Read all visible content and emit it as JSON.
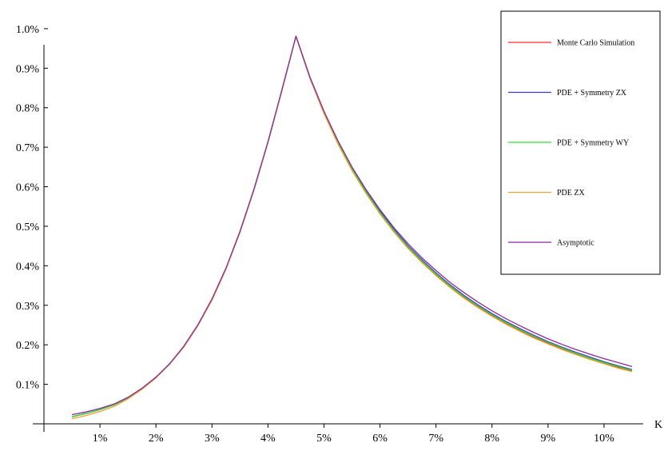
{
  "chart_data": {
    "type": "line",
    "xlabel": "K",
    "ylabel": "",
    "xlim": [
      0,
      0.107
    ],
    "ylim": [
      0,
      0.0102
    ],
    "x_ticks": [
      0.01,
      0.02,
      0.03,
      0.04,
      0.05,
      0.06,
      0.07,
      0.08,
      0.09,
      0.1
    ],
    "x_tick_labels": [
      "1%",
      "2%",
      "3%",
      "4%",
      "5%",
      "6%",
      "7%",
      "8%",
      "9%",
      "10%"
    ],
    "y_ticks": [
      0.001,
      0.002,
      0.003,
      0.004,
      0.005,
      0.006,
      0.007,
      0.008,
      0.009,
      0.01
    ],
    "y_tick_labels": [
      "0.1%",
      "0.2%",
      "0.3%",
      "0.4%",
      "0.5%",
      "0.6%",
      "0.7%",
      "0.8%",
      "0.9%",
      "1.0%"
    ],
    "grid": false,
    "legend_position": "top-right",
    "x": [
      0.005,
      0.0075,
      0.01,
      0.0125,
      0.015,
      0.0175,
      0.02,
      0.0225,
      0.025,
      0.0275,
      0.03,
      0.0325,
      0.035,
      0.0375,
      0.04,
      0.0425,
      0.045,
      0.0475,
      0.05,
      0.0525,
      0.055,
      0.0575,
      0.06,
      0.0625,
      0.065,
      0.0675,
      0.07,
      0.0725,
      0.075,
      0.0775,
      0.08,
      0.0825,
      0.085,
      0.0875,
      0.09,
      0.0925,
      0.095,
      0.0975,
      0.1,
      0.1025,
      0.105
    ],
    "series": [
      {
        "name": "Monte Carlo Simulation",
        "color": "#ff2a2a",
        "values": [
          0.00018,
          0.00026,
          0.00036,
          0.00048,
          0.00066,
          0.00089,
          0.00117,
          0.00152,
          0.00195,
          0.00249,
          0.00313,
          0.00392,
          0.00485,
          0.00592,
          0.00712,
          0.00844,
          0.00981,
          0.00875,
          0.00786,
          0.0071,
          0.00643,
          0.00585,
          0.00533,
          0.00487,
          0.00446,
          0.0041,
          0.00377,
          0.00347,
          0.0032,
          0.00296,
          0.00274,
          0.00254,
          0.00236,
          0.00219,
          0.00204,
          0.0019,
          0.00176,
          0.00164,
          0.00153,
          0.00143,
          0.00133
        ]
      },
      {
        "name": "PDE + Symmetry ZX",
        "color": "#3b3bd6",
        "values": [
          0.00018,
          0.00026,
          0.00036,
          0.00048,
          0.00066,
          0.00089,
          0.00117,
          0.00152,
          0.00196,
          0.0025,
          0.00315,
          0.00393,
          0.00486,
          0.00593,
          0.00713,
          0.00845,
          0.00981,
          0.00877,
          0.0079,
          0.00714,
          0.00648,
          0.0059,
          0.00538,
          0.00492,
          0.00451,
          0.00415,
          0.00382,
          0.00352,
          0.00325,
          0.00301,
          0.00279,
          0.00259,
          0.00241,
          0.00224,
          0.00208,
          0.00194,
          0.00181,
          0.00169,
          0.00157,
          0.00147,
          0.00137
        ]
      },
      {
        "name": "PDE + Symmetry WY",
        "color": "#2ee02e",
        "values": [
          0.00018,
          0.00026,
          0.00036,
          0.00048,
          0.00066,
          0.00089,
          0.00117,
          0.00152,
          0.00195,
          0.00249,
          0.00314,
          0.00392,
          0.00485,
          0.00592,
          0.00712,
          0.00844,
          0.00981,
          0.00876,
          0.00788,
          0.00712,
          0.00645,
          0.00587,
          0.00535,
          0.00489,
          0.00448,
          0.00412,
          0.00379,
          0.00349,
          0.00322,
          0.00298,
          0.00276,
          0.00256,
          0.00238,
          0.00221,
          0.00206,
          0.00192,
          0.00178,
          0.00166,
          0.00155,
          0.00145,
          0.00135
        ]
      },
      {
        "name": "PDE ZX",
        "color": "#f0a030",
        "values": [
          0.00013,
          0.00021,
          0.00031,
          0.00044,
          0.00063,
          0.00087,
          0.00116,
          0.00152,
          0.00195,
          0.00249,
          0.00313,
          0.00392,
          0.00485,
          0.00592,
          0.00712,
          0.00844,
          0.00981,
          0.00874,
          0.00785,
          0.00708,
          0.00641,
          0.00583,
          0.00531,
          0.00485,
          0.00444,
          0.00408,
          0.00375,
          0.00345,
          0.00318,
          0.00294,
          0.00272,
          0.00252,
          0.00234,
          0.00217,
          0.00202,
          0.00188,
          0.00175,
          0.00163,
          0.00152,
          0.00141,
          0.00132
        ]
      },
      {
        "name": "Asymptotic",
        "color": "#8a2a9e",
        "values": [
          0.00023,
          0.0003,
          0.00039,
          0.0005,
          0.00067,
          0.0009,
          0.00118,
          0.00153,
          0.00197,
          0.00251,
          0.00316,
          0.00394,
          0.00487,
          0.00594,
          0.00714,
          0.00846,
          0.00981,
          0.00877,
          0.00791,
          0.00716,
          0.0065,
          0.00593,
          0.00542,
          0.00496,
          0.00456,
          0.0042,
          0.00388,
          0.00358,
          0.00332,
          0.00308,
          0.00286,
          0.00266,
          0.00248,
          0.00231,
          0.00215,
          0.00201,
          0.00188,
          0.00176,
          0.00165,
          0.00155,
          0.00145
        ]
      }
    ]
  }
}
